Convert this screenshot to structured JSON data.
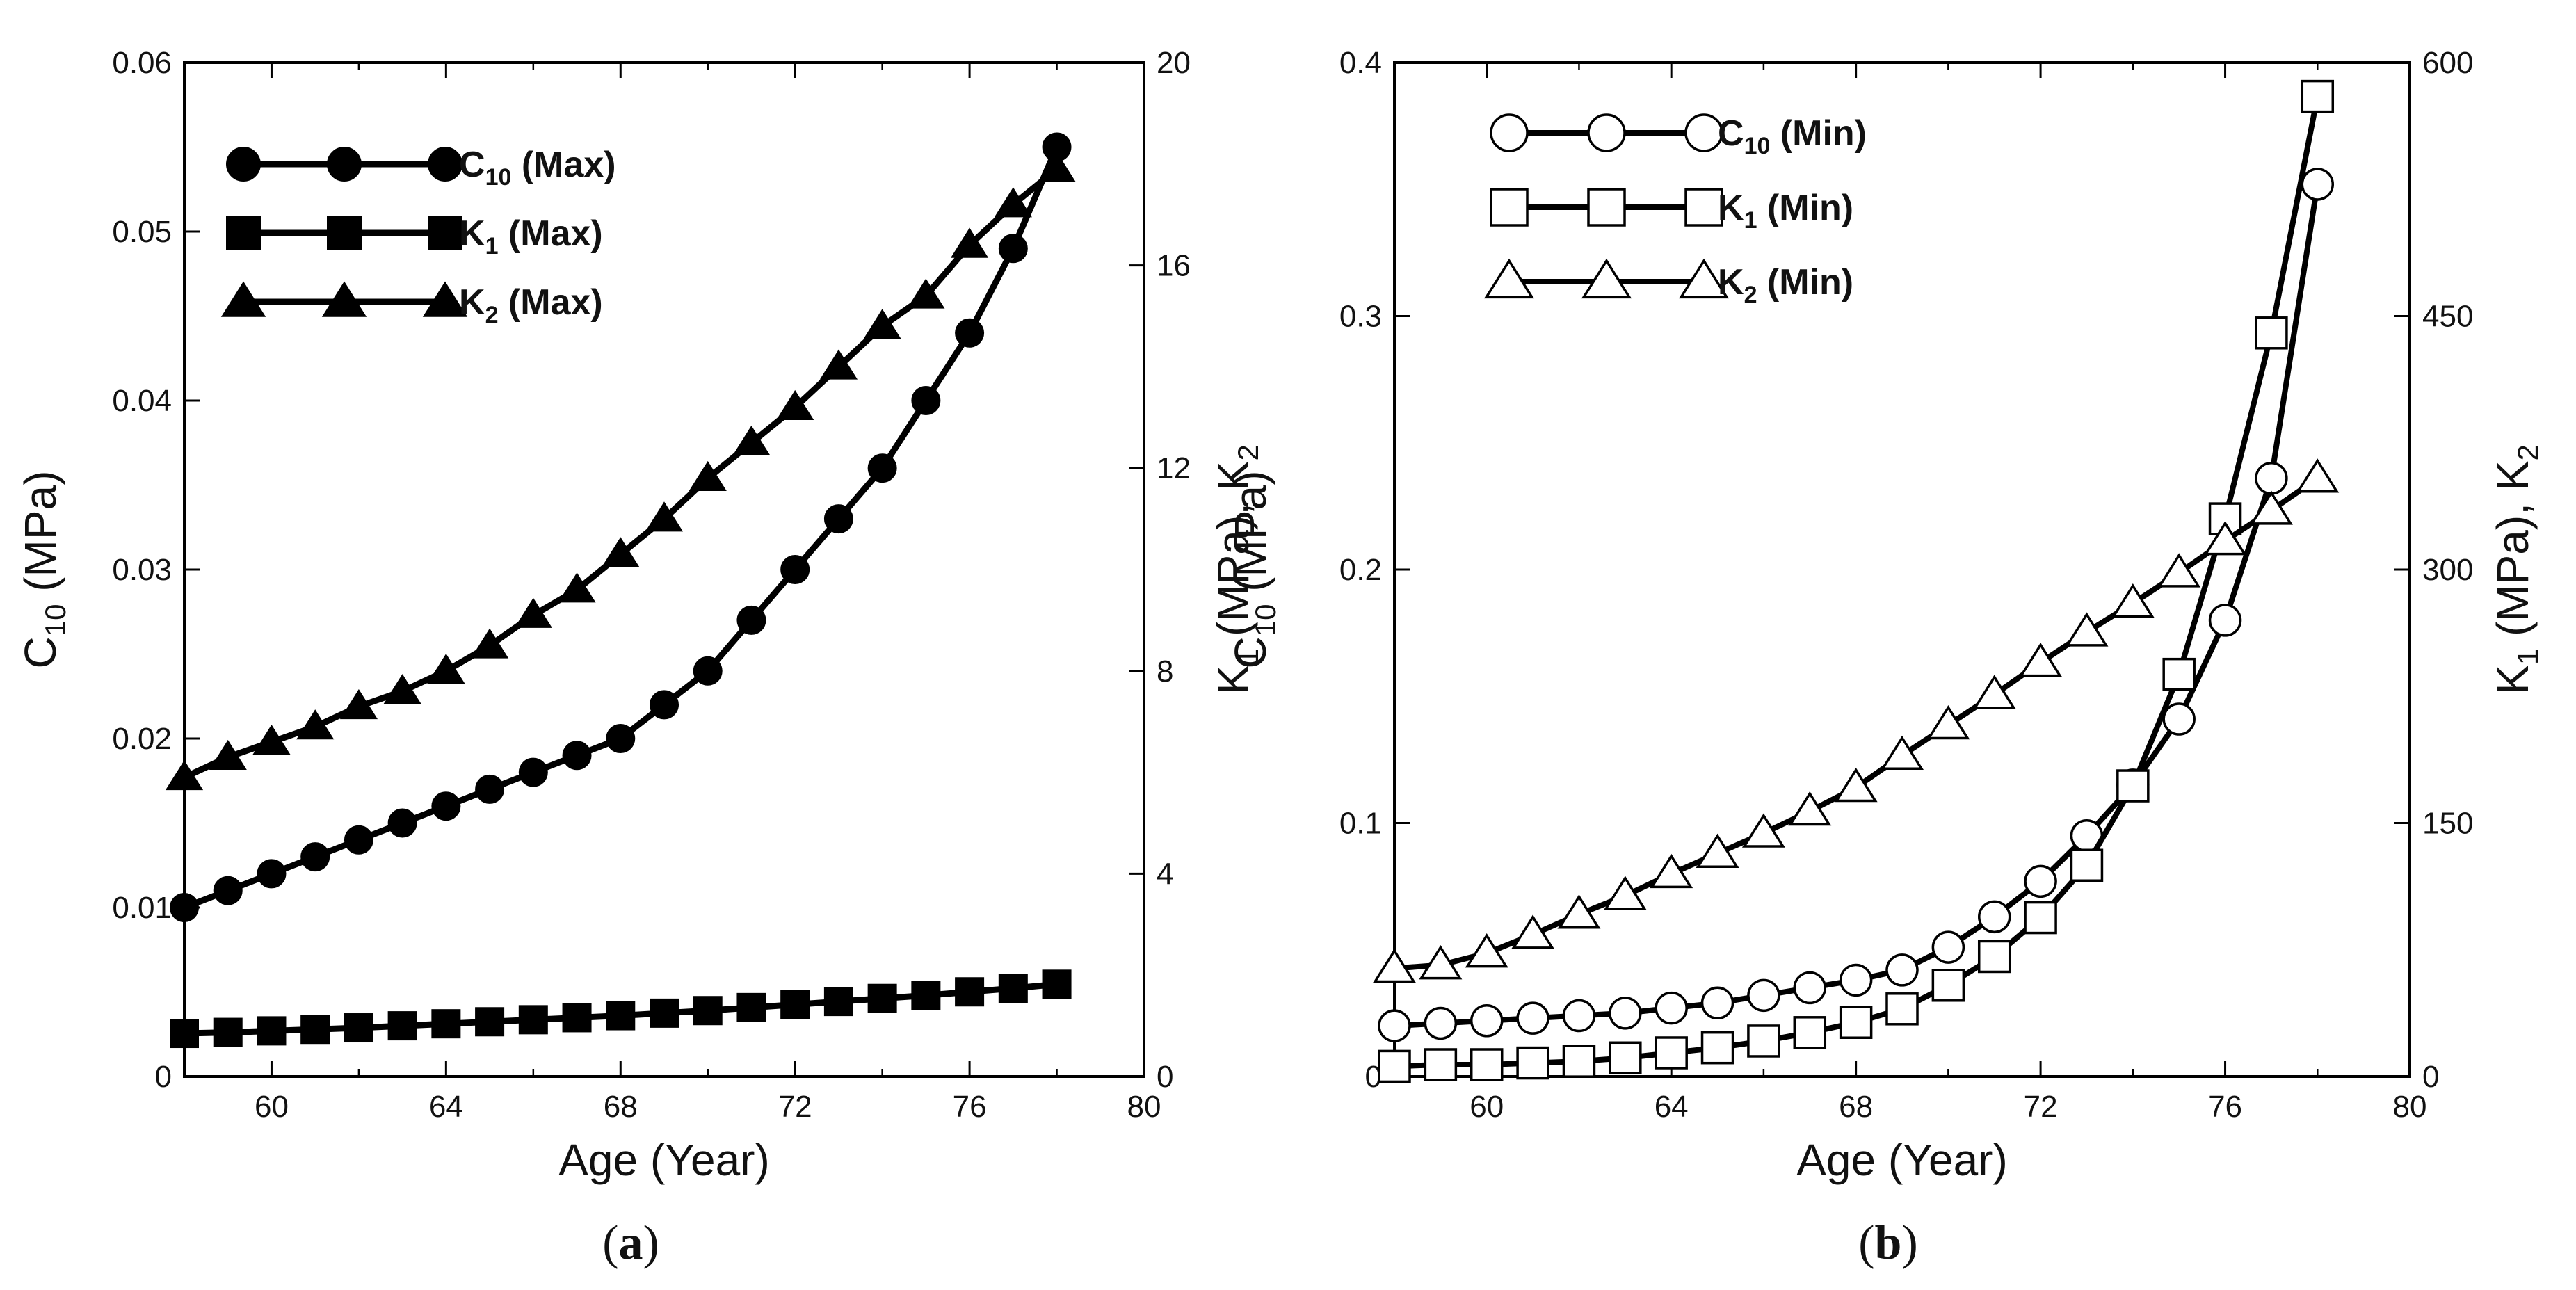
{
  "chart_data": [
    {
      "panel": "a",
      "type": "line",
      "xlabel": "Age (Year)",
      "ylabel_left": "C10 (MPa)",
      "ylabel_right": "K1 (MPa), K2",
      "xlim": [
        58,
        80
      ],
      "xticks": [
        60,
        64,
        68,
        72,
        76,
        80
      ],
      "xtick_labels": [
        "60",
        "64",
        "68",
        "72",
        "76",
        "80"
      ],
      "ylim_left": [
        0,
        0.06
      ],
      "yticks_left": [
        0,
        0.01,
        0.02,
        0.03,
        0.04,
        0.05,
        0.06
      ],
      "ytick_labels_left": [
        "0",
        "0.01",
        "0.02",
        "0.03",
        "0.04",
        "0.05",
        "0.06"
      ],
      "ylim_right": [
        0,
        20
      ],
      "yticks_right": [
        0,
        4,
        8,
        12,
        16,
        20
      ],
      "ytick_labels_right": [
        "0",
        "4",
        "8",
        "12",
        "16",
        "20"
      ],
      "x": [
        58,
        59,
        60,
        61,
        62,
        63,
        64,
        65,
        66,
        67,
        68,
        69,
        70,
        71,
        72,
        73,
        74,
        75,
        76,
        77,
        78
      ],
      "series": [
        {
          "name": "C10 (Max)",
          "axis": "left",
          "marker": "circle",
          "filled": true,
          "values": [
            0.01,
            0.011,
            0.012,
            0.013,
            0.014,
            0.015,
            0.016,
            0.017,
            0.018,
            0.019,
            0.02,
            0.022,
            0.024,
            0.027,
            0.03,
            0.033,
            0.036,
            0.04,
            0.044,
            0.049,
            0.055
          ]
        },
        {
          "name": "K1 (Max)",
          "axis": "right",
          "marker": "square",
          "filled": true,
          "values": [
            0.85,
            0.87,
            0.9,
            0.93,
            0.96,
            1.0,
            1.04,
            1.08,
            1.12,
            1.16,
            1.2,
            1.25,
            1.3,
            1.36,
            1.42,
            1.48,
            1.54,
            1.6,
            1.67,
            1.74,
            1.82
          ]
        },
        {
          "name": "K2 (Max)",
          "axis": "right",
          "marker": "triangle",
          "filled": true,
          "values": [
            5.9,
            6.3,
            6.6,
            6.9,
            7.3,
            7.6,
            8.0,
            8.5,
            9.1,
            9.6,
            10.3,
            11.0,
            11.8,
            12.5,
            13.2,
            14.0,
            14.8,
            15.4,
            16.4,
            17.2,
            17.9
          ]
        }
      ],
      "legend": [
        {
          "main": "C",
          "sub": "10",
          "rest": " (Max)"
        },
        {
          "main": "K",
          "sub": "1",
          "rest": " (Max)"
        },
        {
          "main": "K",
          "sub": "2",
          "rest": " (Max)"
        }
      ],
      "legend_position": "top-left",
      "caption": {
        "open": "(",
        "letter": "a",
        "close": ")"
      },
      "left_label_parts": {
        "main": "C",
        "sub": "10",
        "rest": " (MPa)"
      },
      "right_label_parts": {
        "k1": "K",
        "k1sub": "1",
        "mid": " (MPa), K",
        "k2sub": "2"
      }
    },
    {
      "panel": "b",
      "type": "line",
      "xlabel": "Age (Year)",
      "ylabel_left": "C10 (MPa)",
      "ylabel_right": "K1 (MPa), K2",
      "xlim": [
        58,
        80
      ],
      "xticks": [
        60,
        64,
        68,
        72,
        76,
        80
      ],
      "xtick_labels": [
        "60",
        "64",
        "68",
        "72",
        "76",
        "80"
      ],
      "ylim_left": [
        0,
        0.4
      ],
      "yticks_left": [
        0,
        0.1,
        0.2,
        0.3,
        0.4
      ],
      "ytick_labels_left": [
        "0",
        "0.1",
        "0.2",
        "0.3",
        "0.4"
      ],
      "ylim_right": [
        0,
        600
      ],
      "yticks_right": [
        0,
        150,
        300,
        450,
        600
      ],
      "ytick_labels_right": [
        "0",
        "150",
        "300",
        "450",
        "600"
      ],
      "x": [
        58,
        59,
        60,
        61,
        62,
        63,
        64,
        65,
        66,
        67,
        68,
        69,
        70,
        71,
        72,
        73,
        74,
        75,
        76,
        77,
        78
      ],
      "series": [
        {
          "name": "C10 (Min)",
          "axis": "left",
          "marker": "circle",
          "filled": false,
          "values": [
            0.02,
            0.021,
            0.022,
            0.023,
            0.024,
            0.025,
            0.027,
            0.029,
            0.032,
            0.035,
            0.038,
            0.042,
            0.051,
            0.063,
            0.077,
            0.095,
            0.115,
            0.141,
            0.18,
            0.236,
            0.352
          ]
        },
        {
          "name": "K1 (Min)",
          "axis": "right",
          "marker": "square",
          "filled": false,
          "values": [
            6,
            7,
            7,
            8,
            9,
            11,
            14,
            17,
            21,
            26,
            32,
            40,
            54,
            71,
            94,
            125,
            172,
            238,
            330,
            440,
            580
          ]
        },
        {
          "name": "K2 (Min)",
          "axis": "right",
          "marker": "triangle",
          "filled": false,
          "values": [
            64,
            66,
            73,
            84,
            96,
            107,
            120,
            132,
            144,
            157,
            171,
            190,
            208,
            226,
            245,
            263,
            280,
            298,
            317,
            335,
            354
          ]
        }
      ],
      "legend": [
        {
          "main": "C",
          "sub": "10",
          "rest": " (Min)"
        },
        {
          "main": "K",
          "sub": "1",
          "rest": " (Min)"
        },
        {
          "main": "K",
          "sub": "2",
          "rest": " (Min)"
        }
      ],
      "legend_position": "top-left",
      "caption": {
        "open": "(",
        "letter": "b",
        "close": ")"
      },
      "left_label_parts": {
        "main": "C",
        "sub": "10",
        "rest": " (MPa)"
      },
      "right_label_parts": {
        "k1": "K",
        "k1sub": "1",
        "mid": " (MPa), K",
        "k2sub": "2"
      }
    }
  ]
}
